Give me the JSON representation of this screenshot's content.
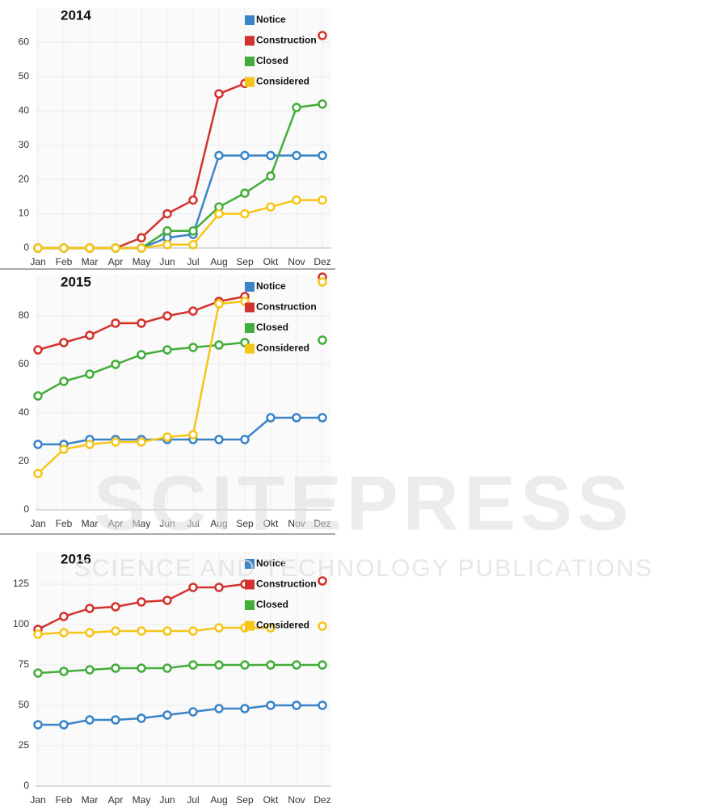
{
  "chart_data": [
    {
      "type": "line",
      "title": "2014",
      "categories": [
        "Jan",
        "Feb",
        "Mar",
        "Apr",
        "May",
        "Jun",
        "Jul",
        "Aug",
        "Sep",
        "Okt",
        "Nov",
        "Dez"
      ],
      "series": [
        {
          "name": "Notice",
          "color": "#3b84c8",
          "values": [
            0,
            0,
            0,
            0,
            0,
            3,
            4,
            27,
            27,
            27,
            27,
            27
          ]
        },
        {
          "name": "Construction",
          "color": "#d3332e",
          "values": [
            0,
            0,
            0,
            0,
            3,
            10,
            14,
            45,
            48,
            null,
            null,
            62
          ]
        },
        {
          "name": "Closed",
          "color": "#43ad3c",
          "values": [
            0,
            0,
            0,
            0,
            0,
            5,
            5,
            12,
            16,
            21,
            41,
            42
          ]
        },
        {
          "name": "Considered",
          "color": "#f5c518",
          "values": [
            0,
            0,
            0,
            0,
            0,
            1,
            1,
            10,
            10,
            12,
            14,
            14
          ]
        }
      ],
      "ylim": [
        0,
        70
      ],
      "yticks": [
        0,
        10,
        20,
        30,
        40,
        50,
        60
      ],
      "grid": true,
      "legend": "top-right"
    },
    {
      "type": "line",
      "title": "2015",
      "categories": [
        "Jan",
        "Feb",
        "Mar",
        "Apr",
        "May",
        "Jun",
        "Jul",
        "Aug",
        "Sep",
        "Okt",
        "Nov",
        "Dez"
      ],
      "series": [
        {
          "name": "Notice",
          "color": "#3b84c8",
          "values": [
            27,
            27,
            29,
            29,
            29,
            29,
            29,
            29,
            29,
            38,
            38,
            38
          ]
        },
        {
          "name": "Construction",
          "color": "#d3332e",
          "values": [
            66,
            69,
            72,
            77,
            77,
            80,
            82,
            86,
            88,
            null,
            null,
            96
          ]
        },
        {
          "name": "Closed",
          "color": "#43ad3c",
          "values": [
            47,
            53,
            56,
            60,
            64,
            66,
            67,
            68,
            69,
            null,
            null,
            70
          ]
        },
        {
          "name": "Considered",
          "color": "#f5c518",
          "values": [
            15,
            25,
            27,
            28,
            28,
            30,
            31,
            85,
            86,
            null,
            null,
            94
          ]
        }
      ],
      "ylim": [
        0,
        97
      ],
      "yticks": [
        0,
        20,
        40,
        60,
        80
      ],
      "grid": true,
      "legend": "top-right"
    },
    {
      "type": "line",
      "title": "2016",
      "categories": [
        "Jan",
        "Feb",
        "Mar",
        "Apr",
        "May",
        "Jun",
        "Jul",
        "Aug",
        "Sep",
        "Okt",
        "Nov",
        "Dez"
      ],
      "series": [
        {
          "name": "Notice",
          "color": "#3b84c8",
          "values": [
            38,
            38,
            41,
            41,
            42,
            44,
            46,
            48,
            48,
            50,
            50,
            50
          ]
        },
        {
          "name": "Construction",
          "color": "#d3332e",
          "values": [
            97,
            105,
            110,
            111,
            114,
            115,
            123,
            123,
            125,
            null,
            null,
            127
          ]
        },
        {
          "name": "Closed",
          "color": "#43ad3c",
          "values": [
            70,
            71,
            72,
            73,
            73,
            73,
            75,
            75,
            75,
            75,
            75,
            75
          ]
        },
        {
          "name": "Considered",
          "color": "#f5c518",
          "values": [
            94,
            95,
            95,
            96,
            96,
            96,
            96,
            98,
            98,
            98,
            null,
            99
          ]
        }
      ],
      "ylim": [
        0,
        145
      ],
      "yticks": [
        0,
        25,
        50,
        75,
        100,
        125
      ],
      "grid": true,
      "legend": "top-right"
    }
  ],
  "watermark": [
    "SCITEPRESS",
    "SCIENCE AND TECHNOLOGY PUBLICATIONS"
  ]
}
